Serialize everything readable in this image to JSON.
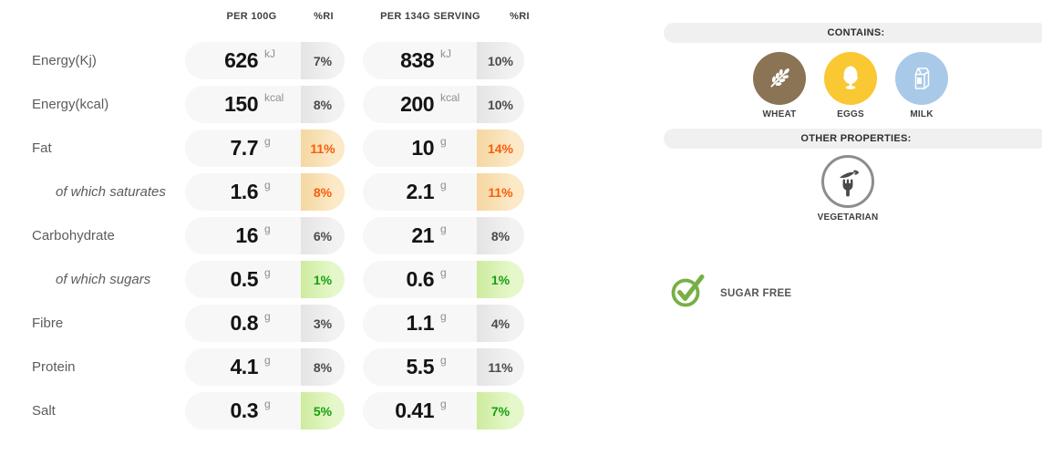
{
  "table": {
    "headers": [
      {
        "label": "PER 100G"
      },
      {
        "label": "%RI"
      },
      {
        "label": "PER 134G SERVING"
      },
      {
        "label": "%RI"
      }
    ],
    "rows": [
      {
        "label": "Energy(Kj)",
        "indent": false,
        "per_100g": {
          "value": "626",
          "unit": "kJ",
          "ri": "7%",
          "ri_level": "gray"
        },
        "per_serving": {
          "value": "838",
          "unit": "kJ",
          "ri": "10%",
          "ri_level": "gray"
        }
      },
      {
        "label": "Energy(kcal)",
        "indent": false,
        "per_100g": {
          "value": "150",
          "unit": "kcal",
          "ri": "8%",
          "ri_level": "gray"
        },
        "per_serving": {
          "value": "200",
          "unit": "kcal",
          "ri": "10%",
          "ri_level": "gray"
        }
      },
      {
        "label": "Fat",
        "indent": false,
        "per_100g": {
          "value": "7.7",
          "unit": "g",
          "ri": "11%",
          "ri_level": "orange"
        },
        "per_serving": {
          "value": "10",
          "unit": "g",
          "ri": "14%",
          "ri_level": "orange"
        }
      },
      {
        "label": "of which saturates",
        "indent": true,
        "per_100g": {
          "value": "1.6",
          "unit": "g",
          "ri": "8%",
          "ri_level": "orange"
        },
        "per_serving": {
          "value": "2.1",
          "unit": "g",
          "ri": "11%",
          "ri_level": "orange"
        }
      },
      {
        "label": "Carbohydrate",
        "indent": false,
        "per_100g": {
          "value": "16",
          "unit": "g",
          "ri": "6%",
          "ri_level": "gray"
        },
        "per_serving": {
          "value": "21",
          "unit": "g",
          "ri": "8%",
          "ri_level": "gray"
        }
      },
      {
        "label": "of which sugars",
        "indent": true,
        "per_100g": {
          "value": "0.5",
          "unit": "g",
          "ri": "1%",
          "ri_level": "green"
        },
        "per_serving": {
          "value": "0.6",
          "unit": "g",
          "ri": "1%",
          "ri_level": "green"
        }
      },
      {
        "label": "Fibre",
        "indent": false,
        "per_100g": {
          "value": "0.8",
          "unit": "g",
          "ri": "3%",
          "ri_level": "gray"
        },
        "per_serving": {
          "value": "1.1",
          "unit": "g",
          "ri": "4%",
          "ri_level": "gray"
        }
      },
      {
        "label": "Protein",
        "indent": false,
        "per_100g": {
          "value": "4.1",
          "unit": "g",
          "ri": "8%",
          "ri_level": "gray"
        },
        "per_serving": {
          "value": "5.5",
          "unit": "g",
          "ri": "11%",
          "ri_level": "gray"
        }
      },
      {
        "label": "Salt",
        "indent": false,
        "per_100g": {
          "value": "0.3",
          "unit": "g",
          "ri": "5%",
          "ri_level": "green"
        },
        "per_serving": {
          "value": "0.41",
          "unit": "g",
          "ri": "7%",
          "ri_level": "green"
        }
      }
    ]
  },
  "contains": {
    "title": "CONTAINS:",
    "items": [
      {
        "label": "WHEAT",
        "icon": "wheat-icon",
        "color": "#8B7355"
      },
      {
        "label": "EGGS",
        "icon": "egg-icon",
        "color": "#F9C832"
      },
      {
        "label": "MILK",
        "icon": "milk-icon",
        "color": "#A9C9E9"
      }
    ]
  },
  "other_properties": {
    "title": "OTHER PROPERTIES:",
    "items": [
      {
        "label": "VEGETARIAN",
        "icon": "vegetarian-icon",
        "color": "#4A4A4A"
      }
    ]
  },
  "badges": [
    {
      "label": "SUGAR FREE",
      "icon": "check-circle-icon",
      "color": "#76B043"
    }
  ],
  "colors": {
    "pill_bg": "#F7F7F7",
    "ri_gray_bg": "#ECECEC",
    "ri_orange_bg": "#FBE9C8",
    "ri_orange_text": "#F95D0B",
    "ri_green_bg": "#E6F8CB",
    "ri_green_text": "#16A012",
    "section_bar_bg": "#F0F0F0",
    "wheat_circle": "#8B7355",
    "eggs_circle": "#F9C832",
    "milk_circle": "#A9C9E9",
    "check_green": "#76B043"
  }
}
